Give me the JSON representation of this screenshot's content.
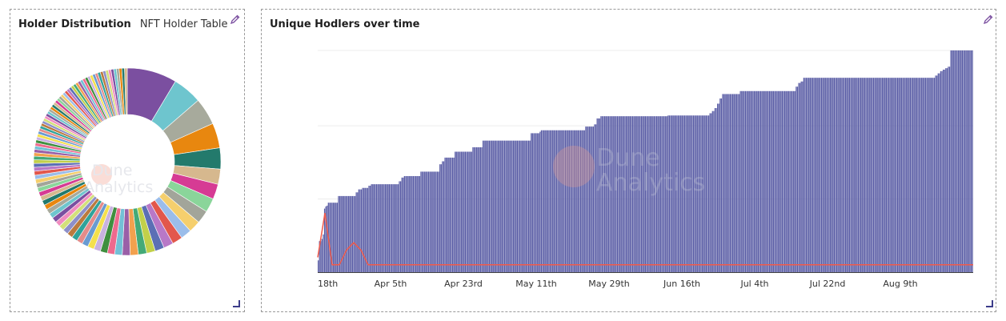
{
  "left_panel": {
    "tabs": [
      {
        "label": "Holder Distribution"
      },
      {
        "label": "NFT Holder Table"
      }
    ],
    "edit_icon": "pencil-icon",
    "resize_icon": "resize-corner-icon"
  },
  "right_panel": {
    "title": "Unique Hodlers over time",
    "edit_icon": "pencil-icon",
    "resize_icon": "resize-corner-icon"
  },
  "watermark": {
    "line1": "Dune",
    "line2": "Analytics"
  },
  "colors": {
    "bar": "#5b5ea6",
    "line": "#f15a4a",
    "pie": [
      "#7b4fa0",
      "#6ec5ce",
      "#a7aa9c",
      "#e8870f",
      "#237a6c",
      "#d6b88e",
      "#d63b94",
      "#8ad59a",
      "#a2a59a",
      "#f5cf6d",
      "#9bbdea",
      "#e2574c",
      "#b878c7",
      "#5b6fb5",
      "#c2d04a",
      "#44aa77",
      "#f2a14e",
      "#9a5fa7",
      "#73c0d6",
      "#ee6a8e",
      "#3f8f3f",
      "#c9b2e0",
      "#f4e04d",
      "#6a9bd1",
      "#e58c8a",
      "#2fa39a",
      "#bb7a3e",
      "#8d8fc9",
      "#d3e07a",
      "#f08cc0"
    ]
  },
  "chart_data": [
    {
      "type": "pie",
      "title": "",
      "slice_count": 96,
      "values": [
        9.2,
        5.4,
        5.0,
        4.6,
        3.9,
        2.8,
        2.8,
        2.6,
        2.4,
        2.2,
        2.0,
        1.9,
        1.8,
        1.7,
        1.6,
        1.55,
        1.5,
        1.45,
        1.4,
        1.35,
        1.3,
        1.25,
        1.2,
        1.15,
        1.1,
        1.08,
        1.05,
        1.02,
        1.0,
        0.98,
        0.96,
        0.94,
        0.92,
        0.9,
        0.88,
        0.86,
        0.84,
        0.82,
        0.8,
        0.78,
        0.76,
        0.74,
        0.72,
        0.7,
        0.68,
        0.66,
        0.64,
        0.62,
        0.6,
        0.58,
        0.57,
        0.56,
        0.55,
        0.54,
        0.53,
        0.52,
        0.51,
        0.5,
        0.5,
        0.5,
        0.5,
        0.5,
        0.5,
        0.5,
        0.5,
        0.5,
        0.5,
        0.5,
        0.5,
        0.5,
        0.5,
        0.5,
        0.5,
        0.5,
        0.5,
        0.5,
        0.5,
        0.5,
        0.5,
        0.5,
        0.5,
        0.5,
        0.5,
        0.5,
        0.5,
        0.5,
        0.5,
        0.5,
        0.5,
        0.5,
        0.5,
        0.5,
        0.5,
        0.5,
        0.5,
        0.5
      ],
      "legend": "none"
    },
    {
      "type": "bar",
      "title": "Unique Hodlers over time",
      "x_tick_labels": [
        "18th",
        "Apr 5th",
        "Apr 23rd",
        "May 11th",
        "May 29th",
        "Jun 16th",
        "Jul 4th",
        "Jul 22nd",
        "Aug 9th"
      ],
      "x_tick_index": [
        0,
        10,
        20,
        30,
        40,
        50,
        60,
        70,
        80
      ],
      "ylim": [
        0,
        300
      ],
      "grid": true,
      "y_tick_labels_shown": false,
      "bar_values": [
        16,
        42,
        42,
        45,
        51,
        86,
        89,
        90,
        94,
        94,
        94,
        94,
        94,
        94,
        94,
        94,
        103,
        103,
        103,
        103,
        103,
        103,
        103,
        103,
        103,
        103,
        103,
        103,
        103,
        103,
        108,
        108,
        112,
        112,
        112,
        114,
        114,
        114,
        114,
        114,
        117,
        117,
        119,
        119,
        119,
        119,
        119,
        119,
        119,
        119,
        119,
        119,
        119,
        119,
        119,
        119,
        119,
        119,
        119,
        119,
        119,
        119,
        119,
        119,
        123,
        123,
        128,
        128,
        130,
        130,
        130,
        130,
        130,
        130,
        130,
        130,
        130,
        130,
        130,
        130,
        130,
        136,
        136,
        136,
        136,
        136,
        136,
        136,
        136,
        136,
        136,
        136,
        136,
        136,
        136,
        136,
        146,
        146,
        150,
        150,
        155,
        155,
        155,
        155,
        155,
        155,
        155,
        155,
        163,
        163,
        163,
        163,
        163,
        163,
        163,
        163,
        163,
        163,
        163,
        163,
        163,
        163,
        169,
        169,
        169,
        169,
        169,
        169,
        169,
        169,
        178,
        178,
        178,
        178,
        178,
        178,
        178,
        178,
        178,
        178,
        178,
        178,
        178,
        178,
        178,
        178,
        178,
        178,
        178,
        178,
        178,
        178,
        178,
        178,
        178,
        178,
        178,
        178,
        178,
        178,
        178,
        178,
        178,
        178,
        178,
        178,
        178,
        178,
        188,
        188,
        188,
        188,
        188,
        188,
        188,
        190,
        192,
        192,
        192,
        192,
        192,
        192,
        192,
        192,
        192,
        192,
        192,
        192,
        192,
        192,
        192,
        192,
        192,
        192,
        192,
        192,
        192,
        192,
        192,
        192,
        192,
        192,
        192,
        192,
        192,
        192,
        192,
        192,
        192,
        192,
        192,
        197,
        197,
        197,
        197,
        197,
        197,
        197,
        200,
        200,
        208,
        208,
        208,
        211,
        211,
        211,
        211,
        211,
        211,
        211,
        211,
        211,
        211,
        211,
        211,
        211,
        211,
        211,
        211,
        211,
        211,
        211,
        211,
        211,
        211,
        211,
        211,
        211,
        211,
        211,
        211,
        211,
        211,
        211,
        211,
        211,
        211,
        211,
        211,
        211,
        211,
        211,
        211,
        211,
        211,
        211,
        211,
        211,
        211,
        211,
        211,
        211,
        211,
        211,
        211,
        211,
        212,
        212,
        212,
        212,
        212,
        212,
        212,
        212,
        212,
        212,
        212,
        212,
        212,
        212,
        212,
        212,
        212,
        212,
        212,
        212,
        212,
        212,
        212,
        212,
        212,
        212,
        212,
        212,
        212,
        212,
        212,
        212,
        212,
        215,
        215,
        218,
        218,
        222,
        222,
        228,
        228,
        235,
        235,
        241,
        241,
        241,
        241,
        241,
        241,
        241,
        241,
        241,
        241,
        241,
        241,
        241,
        241,
        245,
        245,
        245,
        245,
        245,
        245,
        245,
        245,
        245,
        245,
        245,
        245,
        245,
        245,
        245,
        245,
        245,
        245,
        245,
        245,
        245,
        245,
        245,
        245,
        245,
        245,
        245,
        245,
        245,
        245,
        245,
        245,
        245,
        245,
        245,
        245,
        245,
        245,
        245,
        245,
        245,
        245,
        245,
        245,
        251,
        251,
        256,
        256,
        258,
        258,
        263,
        263,
        263,
        263,
        263,
        263,
        263,
        263,
        263,
        263,
        263,
        263,
        263,
        263,
        263,
        263,
        263,
        263,
        263,
        263,
        263,
        263,
        263,
        263,
        263,
        263,
        263,
        263,
        263,
        263,
        263,
        263,
        263,
        263,
        263,
        263,
        263,
        263,
        263,
        263,
        263,
        263,
        263,
        263,
        263,
        263,
        263,
        263,
        263,
        263,
        263,
        263,
        263,
        263,
        263,
        263,
        263,
        263,
        263,
        263,
        263,
        263,
        263,
        263,
        263,
        263,
        263,
        263,
        263,
        263,
        263,
        263,
        263,
        263,
        263,
        263,
        263,
        263,
        263,
        263,
        263,
        263,
        263,
        263,
        263,
        263,
        263,
        263,
        263,
        263,
        263,
        263,
        263,
        263,
        263,
        263,
        263,
        263,
        263,
        263,
        263,
        263,
        263,
        263,
        266,
        266,
        269,
        269,
        272,
        272,
        274,
        274,
        276,
        276,
        278,
        278,
        300,
        300,
        300,
        300,
        300,
        300,
        300,
        300,
        300,
        300,
        300,
        300,
        300,
        300,
        300,
        300,
        300,
        300
      ]
    },
    {
      "type": "line",
      "series": [
        {
          "values": [
            2,
            8,
            1,
            1,
            3,
            4,
            3,
            1,
            1,
            1,
            1,
            1,
            1,
            1,
            1,
            1,
            1,
            1,
            1,
            1,
            1,
            1,
            1,
            1,
            1,
            1,
            1,
            1,
            1,
            1,
            1,
            1,
            1,
            1,
            1,
            1,
            1,
            1,
            1,
            1,
            1,
            1,
            1,
            1,
            1,
            1,
            1,
            1,
            1,
            1,
            1,
            1,
            1,
            1,
            1,
            1,
            1,
            1,
            1,
            1,
            1,
            1,
            1,
            1,
            1,
            1,
            1,
            1,
            1,
            1,
            1,
            1,
            1,
            1,
            1,
            1,
            1,
            1,
            1,
            1,
            1,
            1,
            1,
            1,
            1,
            1,
            1,
            1,
            1,
            1,
            1,
            1
          ]
        }
      ]
    }
  ]
}
